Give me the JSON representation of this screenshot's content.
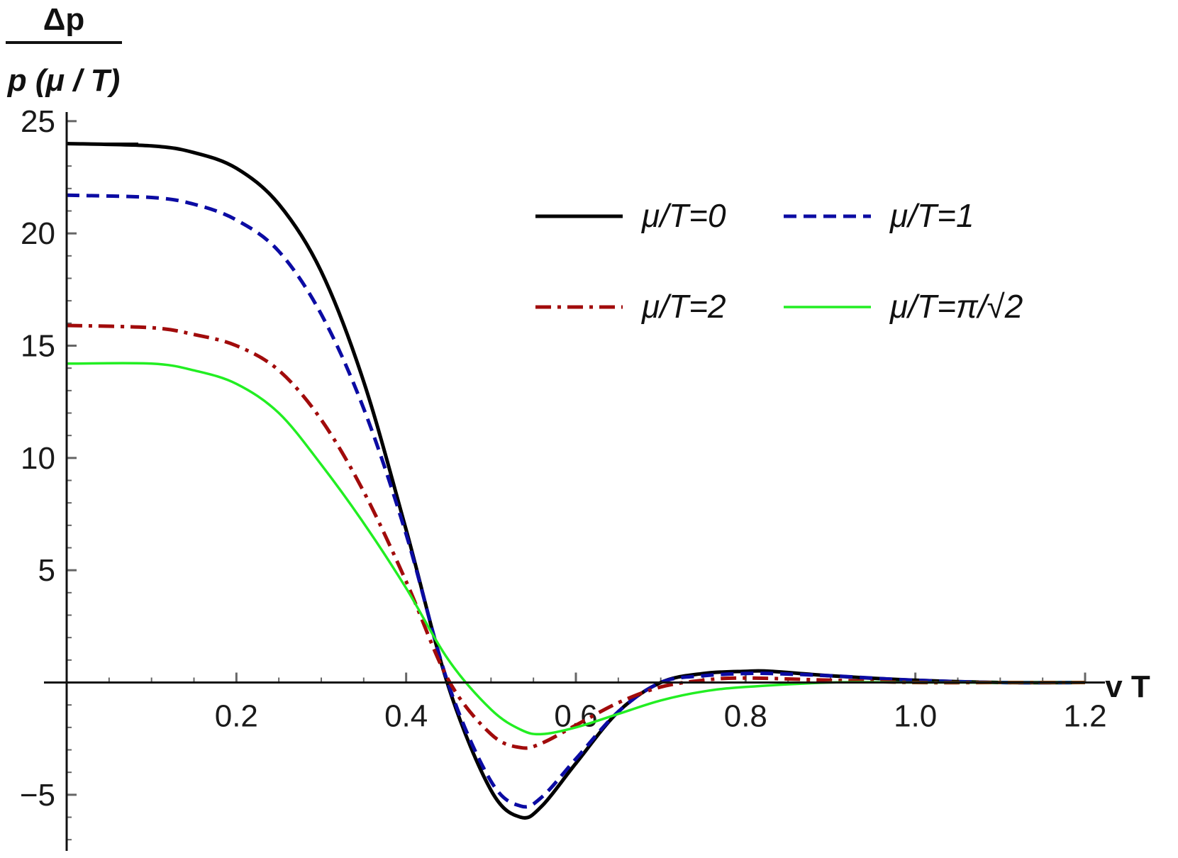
{
  "chart_data": {
    "type": "line",
    "ylabel_numerator": "Δp",
    "ylabel_denominator": "p (μ / T)",
    "xlabel": "v T",
    "xlim": [
      0,
      1.2
    ],
    "ylim": [
      -7.5,
      25.5
    ],
    "x_ticks": [
      {
        "value": 0.2,
        "label": "0.2"
      },
      {
        "value": 0.4,
        "label": "0.4"
      },
      {
        "value": 0.6,
        "label": "0.6"
      },
      {
        "value": 0.8,
        "label": "0.8"
      },
      {
        "value": 1.0,
        "label": "1.0"
      },
      {
        "value": 1.2,
        "label": "1.2"
      }
    ],
    "y_ticks": [
      {
        "value": -5,
        "label": "−5"
      },
      {
        "value": 5,
        "label": "5"
      },
      {
        "value": 10,
        "label": "10"
      },
      {
        "value": 15,
        "label": "15"
      },
      {
        "value": 20,
        "label": "20"
      },
      {
        "value": 25,
        "label": "25"
      }
    ],
    "reference_line_y": 24,
    "grid": false,
    "legend_position": "top-right",
    "series": [
      {
        "name": "μ/T=0",
        "color": "#000000",
        "dash": "solid",
        "x": [
          0.0,
          0.1,
          0.15,
          0.2,
          0.25,
          0.3,
          0.35,
          0.4,
          0.45,
          0.5,
          0.535,
          0.56,
          0.6,
          0.65,
          0.7,
          0.75,
          0.8,
          0.83,
          0.9,
          1.0,
          1.1,
          1.2
        ],
        "y": [
          24.0,
          23.9,
          23.6,
          22.9,
          21.3,
          18.3,
          13.4,
          6.8,
          -0.2,
          -4.8,
          -6.0,
          -5.5,
          -3.6,
          -1.3,
          0.0,
          0.4,
          0.5,
          0.5,
          0.3,
          0.1,
          0.0,
          0.0
        ]
      },
      {
        "name": "μ/T=1",
        "color": "#0b0ba3",
        "dash": "dashed",
        "x": [
          0.0,
          0.1,
          0.15,
          0.2,
          0.25,
          0.3,
          0.35,
          0.4,
          0.45,
          0.5,
          0.535,
          0.56,
          0.6,
          0.65,
          0.7,
          0.75,
          0.8,
          0.83,
          0.9,
          1.0,
          1.1,
          1.2
        ],
        "y": [
          21.7,
          21.6,
          21.3,
          20.6,
          19.2,
          16.4,
          12.2,
          6.6,
          -0.1,
          -4.4,
          -5.5,
          -5.1,
          -3.4,
          -1.3,
          0.0,
          0.3,
          0.4,
          0.4,
          0.3,
          0.1,
          0.0,
          0.0
        ]
      },
      {
        "name": "μ/T=2",
        "color": "#a10b0b",
        "dash": "dashdot",
        "x": [
          0.0,
          0.1,
          0.15,
          0.2,
          0.25,
          0.3,
          0.35,
          0.4,
          0.45,
          0.5,
          0.535,
          0.56,
          0.6,
          0.65,
          0.7,
          0.75,
          0.8,
          0.9,
          1.0,
          1.1,
          1.2
        ],
        "y": [
          15.9,
          15.8,
          15.5,
          15.0,
          13.9,
          11.7,
          8.5,
          4.5,
          0.1,
          -2.3,
          -2.9,
          -2.7,
          -1.9,
          -0.9,
          -0.2,
          0.1,
          0.2,
          0.1,
          0.0,
          0.0,
          0.0
        ]
      },
      {
        "name": "μ/T=π/√2",
        "color": "#22ee22",
        "dash": "solid",
        "x": [
          0.0,
          0.1,
          0.15,
          0.2,
          0.25,
          0.3,
          0.35,
          0.4,
          0.45,
          0.5,
          0.535,
          0.56,
          0.6,
          0.65,
          0.7,
          0.75,
          0.8,
          0.9,
          1.0,
          1.1,
          1.2
        ],
        "y": [
          14.2,
          14.2,
          13.9,
          13.3,
          12.0,
          9.7,
          7.1,
          4.2,
          1.0,
          -1.2,
          -2.1,
          -2.3,
          -2.0,
          -1.4,
          -0.8,
          -0.4,
          -0.2,
          0.0,
          0.0,
          0.0,
          0.0
        ]
      }
    ]
  }
}
